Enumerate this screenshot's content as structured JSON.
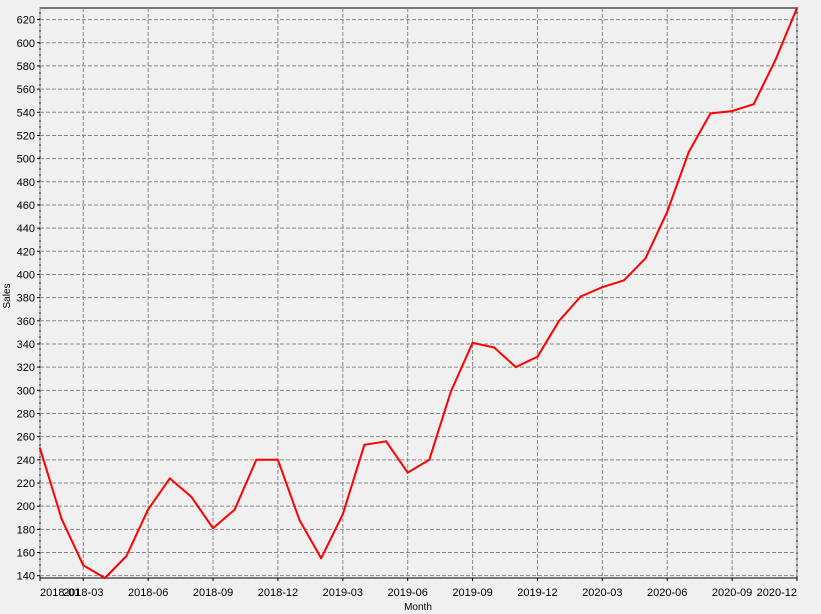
{
  "chart_data": {
    "type": "line",
    "xlabel": "Month",
    "ylabel": "Sales",
    "ylim": [
      138,
      630
    ],
    "y_ticks": [
      140,
      160,
      180,
      200,
      220,
      240,
      260,
      280,
      300,
      320,
      340,
      360,
      380,
      400,
      420,
      440,
      460,
      480,
      500,
      520,
      540,
      560,
      580,
      600,
      620
    ],
    "x_ticks": [
      "2018-01",
      "2018-03",
      "2018-06",
      "2018-09",
      "2018-12",
      "2019-03",
      "2019-06",
      "2019-09",
      "2019-12",
      "2020-03",
      "2020-06",
      "2020-09",
      "2020-12"
    ],
    "grid": true,
    "line_color": "#ff0000",
    "categories": [
      "2018-01",
      "2018-02",
      "2018-03",
      "2018-04",
      "2018-05",
      "2018-06",
      "2018-07",
      "2018-08",
      "2018-09",
      "2018-10",
      "2018-11",
      "2018-12",
      "2019-01",
      "2019-02",
      "2019-03",
      "2019-04",
      "2019-05",
      "2019-06",
      "2019-07",
      "2019-08",
      "2019-09",
      "2019-10",
      "2019-11",
      "2019-12",
      "2020-01",
      "2020-02",
      "2020-03",
      "2020-04",
      "2020-05",
      "2020-06",
      "2020-07",
      "2020-08",
      "2020-09",
      "2020-10",
      "2020-11",
      "2020-12"
    ],
    "series": [
      {
        "values": [
          250,
          189,
          149,
          138,
          157,
          197,
          224,
          208,
          181,
          197,
          240,
          240,
          188,
          155,
          193,
          253,
          256,
          229,
          240,
          299,
          341,
          337,
          320,
          329,
          360,
          381,
          389,
          395,
          414,
          454,
          506,
          539,
          541,
          547,
          585,
          630
        ]
      }
    ]
  }
}
